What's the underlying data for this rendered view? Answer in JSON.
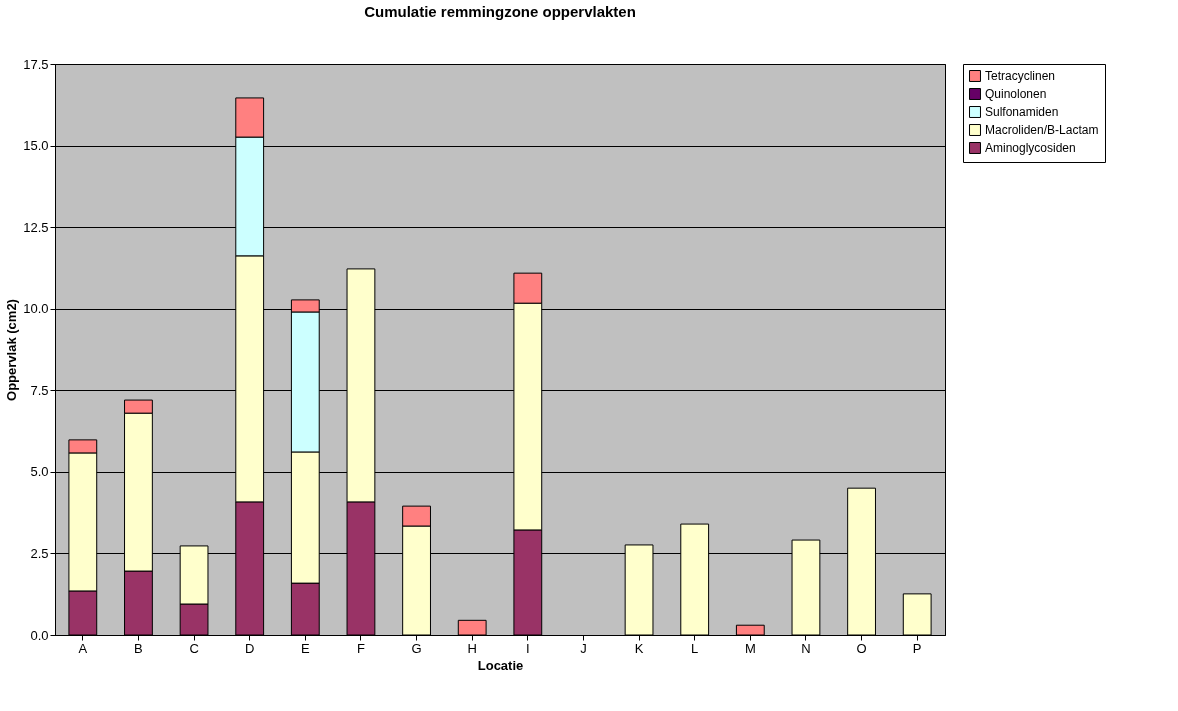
{
  "chart_data": {
    "type": "bar",
    "title": "Cumulatie remmingzone oppervlakten",
    "xlabel": "Locatie",
    "ylabel": "Oppervlak (cm2)",
    "categories": [
      "A",
      "B",
      "C",
      "D",
      "E",
      "F",
      "G",
      "H",
      "I",
      "J",
      "K",
      "L",
      "M",
      "N",
      "O",
      "P"
    ],
    "stacked": true,
    "grid": "y",
    "legend": "right",
    "ylim": [
      0,
      17.5
    ],
    "yticks": [
      {
        "value": 0,
        "label": "0.0"
      },
      {
        "value": 2.5,
        "label": "2.5"
      },
      {
        "value": 5,
        "label": "5.0"
      },
      {
        "value": 7.5,
        "label": "7.5"
      },
      {
        "value": 10,
        "label": "10.0"
      },
      {
        "value": 12.5,
        "label": "12.5"
      },
      {
        "value": 15,
        "label": "15.0"
      },
      {
        "value": 17.5,
        "label": "17.5"
      }
    ],
    "series": [
      {
        "name": "Aminoglycosiden",
        "color": "#993366",
        "values": [
          1.35,
          1.96,
          0.95,
          4.08,
          1.59,
          4.08,
          null,
          null,
          3.22,
          null,
          null,
          null,
          null,
          null,
          null,
          null
        ]
      },
      {
        "name": "Macroliden/B-Lactam",
        "color": "#ffffcc",
        "values": [
          4.23,
          4.84,
          1.78,
          7.54,
          4.02,
          7.14,
          3.34,
          null,
          6.95,
          null,
          2.76,
          3.4,
          null,
          2.91,
          4.5,
          1.26
        ]
      },
      {
        "name": "Sulfonamiden",
        "color": "#ccffff",
        "values": [
          null,
          null,
          null,
          3.64,
          4.29,
          null,
          null,
          null,
          null,
          null,
          null,
          null,
          null,
          null,
          null,
          null
        ]
      },
      {
        "name": "Quinolonen",
        "color": "#660066",
        "values": [
          null,
          null,
          null,
          null,
          null,
          null,
          null,
          null,
          null,
          null,
          null,
          null,
          null,
          null,
          null,
          null
        ]
      },
      {
        "name": "Tetracyclinen",
        "color": "#ff8080",
        "values": [
          0.4,
          0.4,
          null,
          1.2,
          0.37,
          null,
          0.61,
          0.45,
          0.92,
          null,
          null,
          null,
          0.3,
          null,
          null,
          null
        ]
      }
    ]
  }
}
